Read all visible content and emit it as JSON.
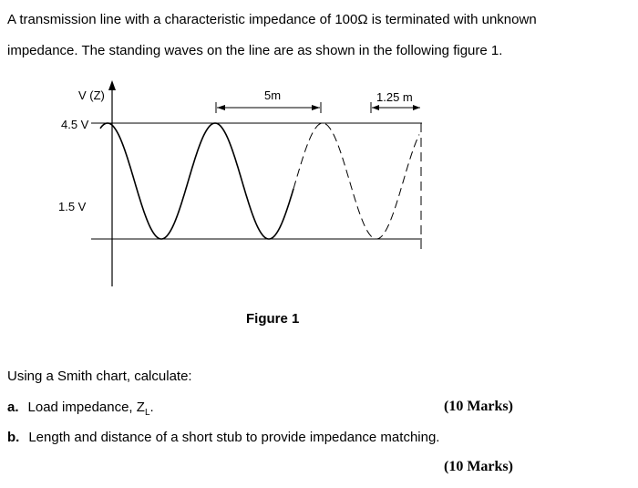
{
  "problem": {
    "line1": "A transmission line with a characteristic impedance of 100Ω is terminated with unknown",
    "line2": "impedance. The standing waves on the line are as shown in the following figure 1."
  },
  "figure": {
    "y_axis_label": "V (Z)",
    "vmax_label": "4.5 V",
    "vmin_label": "1.5 V",
    "distance_label_1": "5m",
    "distance_label_2": "1.25 m",
    "caption": "Figure 1"
  },
  "questions": {
    "intro": "Using a Smith chart, calculate:",
    "items": [
      {
        "label": "a.",
        "text": "Load impedance, Z",
        "subscript": "L",
        "suffix": ".",
        "marks": "(10 Marks)"
      },
      {
        "label": "b.",
        "text": "Length and distance of a short stub to provide impedance matching.",
        "marks": "(10 Marks)"
      }
    ]
  }
}
